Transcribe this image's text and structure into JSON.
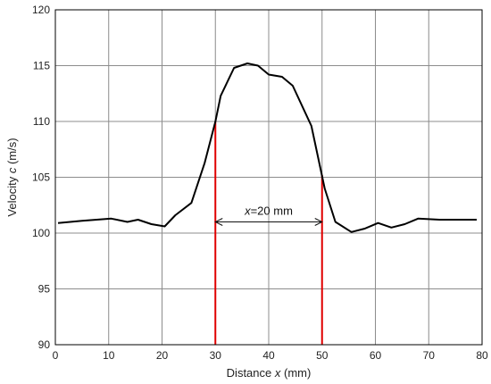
{
  "chart_data": {
    "type": "line",
    "title": "",
    "xlabel": "Distance",
    "xlabel_var": "x",
    "xlabel_unit": "(mm)",
    "ylabel": "Velocity",
    "ylabel_var": "c",
    "ylabel_unit": "(m/s)",
    "xlim": [
      0,
      80
    ],
    "ylim": [
      90,
      120
    ],
    "xticks": [
      0,
      10,
      20,
      30,
      40,
      50,
      60,
      70,
      80
    ],
    "yticks": [
      90,
      95,
      100,
      105,
      110,
      115,
      120
    ],
    "grid": true,
    "series": [
      {
        "color": "#000000",
        "x": [
          0.5,
          5,
          10.5,
          13.5,
          15.5,
          18,
          20.5,
          22.5,
          25.5,
          28,
          30,
          31,
          33.5,
          36,
          38,
          40,
          42.5,
          44.5,
          48,
          50.5,
          52.5,
          55.5,
          58,
          60.5,
          63,
          65.5,
          68,
          72,
          76,
          79
        ],
        "y": [
          100.9,
          101.1,
          101.3,
          101.0,
          101.2,
          100.8,
          100.6,
          101.6,
          102.7,
          106.3,
          110.0,
          112.3,
          114.8,
          115.2,
          115.0,
          114.2,
          114.0,
          113.2,
          109.6,
          104.0,
          101.0,
          100.1,
          100.4,
          100.9,
          100.5,
          100.8,
          101.3,
          101.2,
          101.2,
          101.2
        ]
      }
    ],
    "markers": [
      {
        "x": 30,
        "y": 110.0,
        "color": "#e00000"
      },
      {
        "x": 50,
        "y": 105.2,
        "color": "#e00000"
      }
    ],
    "annotation": {
      "label_var": "x",
      "label_rest": "=20 mm",
      "x_from": 30,
      "x_to": 50,
      "y": 101.0
    }
  }
}
